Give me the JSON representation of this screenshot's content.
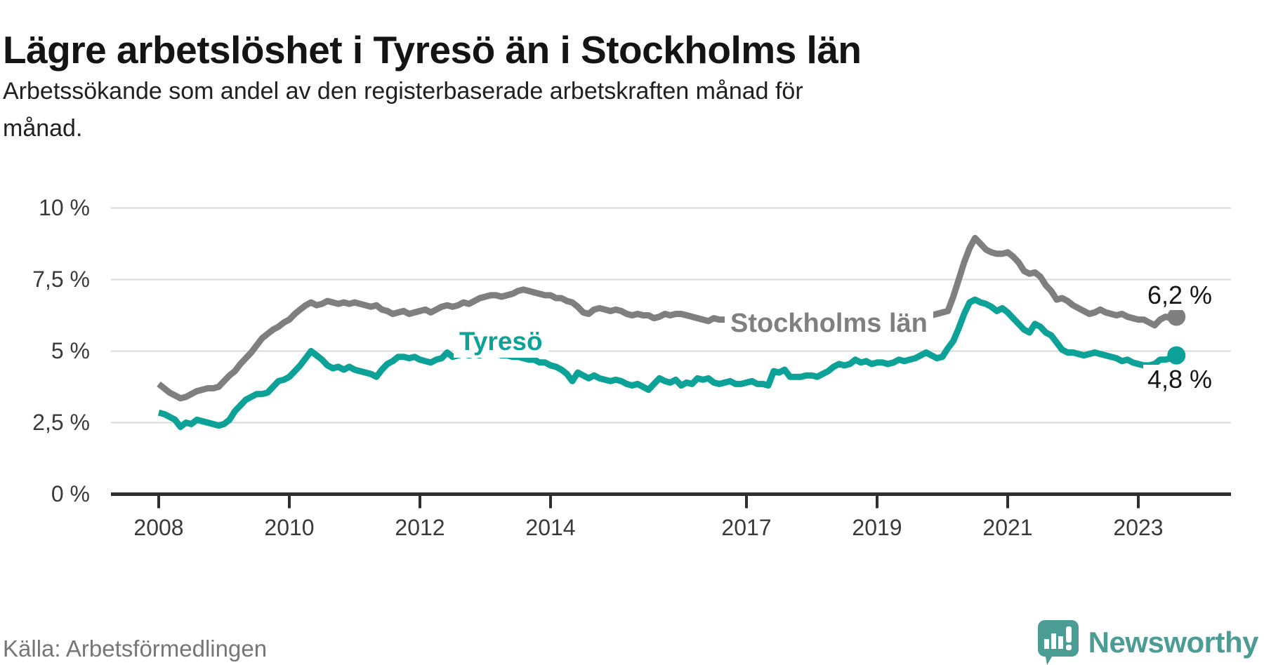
{
  "header": {
    "title": "Lägre arbetslöshet i Tyresö än i Stockholms län",
    "subtitle_line1": "Arbetssökande som andel av den registerbaserade arbetskraften månad för",
    "subtitle_line2": "månad."
  },
  "footer": {
    "source": "Källa: Arbetsförmedlingen",
    "brand": "Newsworthy"
  },
  "colors": {
    "tyreso_teal": "#0ca298",
    "stockholm_gray": "#7f7f7f",
    "gridline": "#d8d8d8",
    "axis": "#2e2e2e",
    "logo_teal": "#4a9c94"
  },
  "chart_data": {
    "type": "line",
    "title": "Lägre arbetslöshet i Tyresö än i Stockholms län",
    "subtitle": "Arbetssökande som andel av den registerbaserade arbetskraften månad för månad.",
    "unit": "%",
    "x_unit": "month",
    "x_start": "2008-01",
    "x_end": "2023-08",
    "ylim": [
      0,
      10
    ],
    "grid": true,
    "y_ticks": [
      {
        "label": "10 %",
        "value": 10
      },
      {
        "label": "7,5 %",
        "value": 7.5
      },
      {
        "label": "5 %",
        "value": 5
      },
      {
        "label": "2,5 %",
        "value": 2.5
      },
      {
        "label": "0 %",
        "value": 0
      }
    ],
    "x_ticks": [
      {
        "label": "2008",
        "year": 2008
      },
      {
        "label": "2010",
        "year": 2010
      },
      {
        "label": "2012",
        "year": 2012
      },
      {
        "label": "2014",
        "year": 2014
      },
      {
        "label": "2017",
        "year": 2017
      },
      {
        "label": "2019",
        "year": 2019
      },
      {
        "label": "2021",
        "year": 2021
      },
      {
        "label": "2023",
        "year": 2023
      }
    ],
    "series": [
      {
        "name": "Stockholms län",
        "label": "Stockholms län",
        "end_label": "6,2 %",
        "end_value": 6.2,
        "color": "#7f7f7f",
        "values": [
          3.85,
          3.7,
          3.55,
          3.45,
          3.35,
          3.4,
          3.5,
          3.6,
          3.65,
          3.7,
          3.7,
          3.75,
          3.95,
          4.15,
          4.3,
          4.55,
          4.75,
          4.95,
          5.2,
          5.45,
          5.6,
          5.75,
          5.85,
          6.0,
          6.1,
          6.3,
          6.45,
          6.6,
          6.7,
          6.6,
          6.65,
          6.75,
          6.7,
          6.65,
          6.7,
          6.65,
          6.7,
          6.65,
          6.6,
          6.55,
          6.6,
          6.45,
          6.4,
          6.3,
          6.35,
          6.4,
          6.3,
          6.35,
          6.4,
          6.45,
          6.35,
          6.45,
          6.55,
          6.6,
          6.55,
          6.6,
          6.7,
          6.65,
          6.75,
          6.85,
          6.9,
          6.95,
          6.95,
          6.9,
          6.95,
          7.0,
          7.1,
          7.15,
          7.1,
          7.05,
          7.0,
          6.95,
          6.95,
          6.85,
          6.85,
          6.75,
          6.7,
          6.55,
          6.35,
          6.3,
          6.45,
          6.5,
          6.45,
          6.4,
          6.45,
          6.4,
          6.3,
          6.25,
          6.3,
          6.25,
          6.25,
          6.15,
          6.2,
          6.3,
          6.25,
          6.3,
          6.3,
          6.25,
          6.2,
          6.15,
          6.1,
          6.05,
          6.15,
          6.1,
          6.1,
          6.05,
          6.0,
          5.95,
          5.95,
          5.9,
          5.9,
          5.85,
          5.85,
          5.8,
          5.85,
          5.8,
          5.8,
          5.75,
          5.75,
          5.8,
          5.8,
          5.75,
          5.7,
          5.7,
          5.65,
          5.7,
          5.75,
          5.7,
          5.75,
          5.8,
          5.85,
          5.9,
          5.95,
          5.9,
          5.95,
          6.0,
          6.05,
          6.1,
          6.15,
          6.1,
          6.15,
          6.2,
          6.25,
          6.3,
          6.35,
          6.4,
          6.9,
          7.5,
          8.1,
          8.6,
          8.95,
          8.75,
          8.55,
          8.45,
          8.4,
          8.4,
          8.45,
          8.3,
          8.1,
          7.8,
          7.7,
          7.75,
          7.6,
          7.3,
          7.1,
          6.8,
          6.85,
          6.75,
          6.6,
          6.5,
          6.4,
          6.3,
          6.35,
          6.45,
          6.35,
          6.3,
          6.25,
          6.3,
          6.2,
          6.15,
          6.1,
          6.1,
          6.0,
          5.9,
          6.1,
          6.2,
          6.15,
          6.2
        ]
      },
      {
        "name": "Tyresö",
        "label": "Tyresö",
        "end_label": "4,8 %",
        "end_value": 4.8,
        "color": "#0ca298",
        "values": [
          2.85,
          2.8,
          2.7,
          2.6,
          2.35,
          2.5,
          2.45,
          2.6,
          2.55,
          2.5,
          2.45,
          2.4,
          2.45,
          2.6,
          2.9,
          3.1,
          3.3,
          3.4,
          3.5,
          3.5,
          3.55,
          3.75,
          3.95,
          4.0,
          4.1,
          4.3,
          4.5,
          4.75,
          5.0,
          4.85,
          4.7,
          4.5,
          4.4,
          4.45,
          4.35,
          4.45,
          4.35,
          4.3,
          4.25,
          4.2,
          4.1,
          4.35,
          4.55,
          4.65,
          4.8,
          4.8,
          4.75,
          4.8,
          4.7,
          4.65,
          4.6,
          4.7,
          4.75,
          4.95,
          4.8,
          4.85,
          4.9,
          4.85,
          4.9,
          4.85,
          4.95,
          4.9,
          4.9,
          4.85,
          4.85,
          4.8,
          4.8,
          4.75,
          4.7,
          4.7,
          4.6,
          4.6,
          4.5,
          4.45,
          4.35,
          4.2,
          3.95,
          4.25,
          4.15,
          4.05,
          4.15,
          4.05,
          4.0,
          3.95,
          4.0,
          3.95,
          3.85,
          3.8,
          3.85,
          3.75,
          3.65,
          3.85,
          4.05,
          3.95,
          3.9,
          4.0,
          3.8,
          3.9,
          3.85,
          4.05,
          4.0,
          4.05,
          3.9,
          3.85,
          3.9,
          3.95,
          3.85,
          3.85,
          3.9,
          3.95,
          3.85,
          3.85,
          3.8,
          4.3,
          4.25,
          4.35,
          4.1,
          4.1,
          4.1,
          4.15,
          4.15,
          4.1,
          4.2,
          4.3,
          4.45,
          4.55,
          4.5,
          4.55,
          4.7,
          4.6,
          4.65,
          4.55,
          4.6,
          4.6,
          4.55,
          4.6,
          4.7,
          4.65,
          4.7,
          4.75,
          4.85,
          4.95,
          4.85,
          4.75,
          4.8,
          5.1,
          5.35,
          5.8,
          6.3,
          6.7,
          6.8,
          6.7,
          6.65,
          6.55,
          6.4,
          6.5,
          6.35,
          6.15,
          5.95,
          5.75,
          5.65,
          5.95,
          5.85,
          5.65,
          5.55,
          5.3,
          5.05,
          4.95,
          4.95,
          4.9,
          4.85,
          4.9,
          4.95,
          4.9,
          4.85,
          4.8,
          4.75,
          4.65,
          4.7,
          4.6,
          4.55,
          4.5,
          4.5,
          4.55,
          4.7,
          4.7,
          4.75,
          4.85
        ]
      }
    ]
  }
}
